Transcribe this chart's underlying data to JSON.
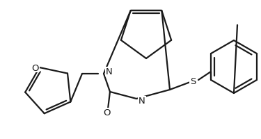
{
  "background_color": "#ffffff",
  "line_color": "#1a1a1a",
  "line_width": 1.6,
  "figsize": [
    3.75,
    2.01
  ],
  "dpi": 100,
  "xlim": [
    0,
    375
  ],
  "ylim": [
    0,
    201
  ]
}
